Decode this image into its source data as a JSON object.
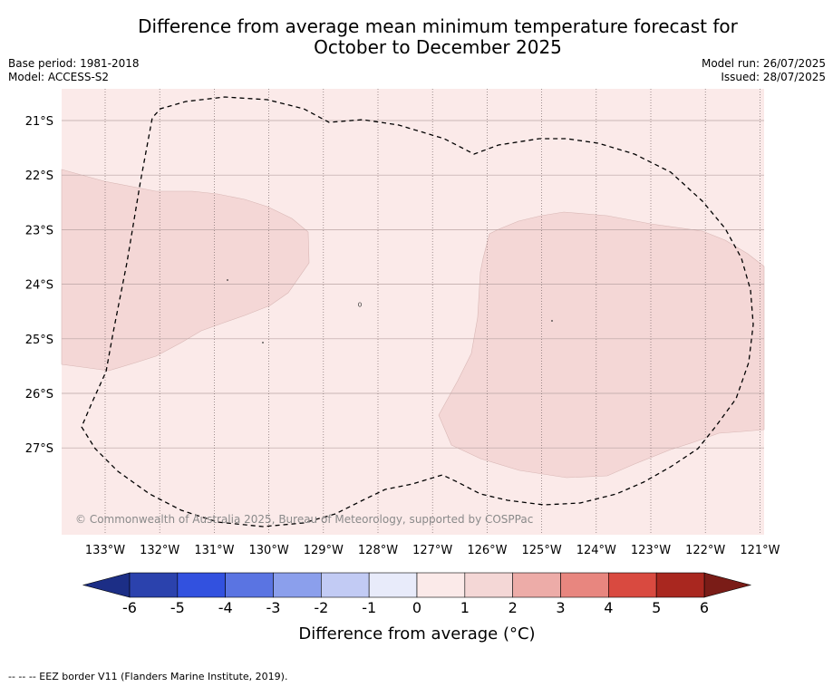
{
  "title": {
    "line1": "Difference from average mean minimum temperature forecast for",
    "line2": "October to December 2025"
  },
  "meta": {
    "base_period": "Base period: 1981-2018",
    "model": "Model: ACCESS-S2",
    "model_run": "Model run: 26/07/2025",
    "issued": "Issued: 28/07/2025"
  },
  "map": {
    "background_color": "#fbeae9",
    "lat_labels": [
      "21°S",
      "22°S",
      "23°S",
      "24°S",
      "25°S",
      "26°S",
      "27°S"
    ],
    "lon_labels": [
      "133°W",
      "132°W",
      "131°W",
      "130°W",
      "129°W",
      "128°W",
      "127°W",
      "126°W",
      "125°W",
      "124°W",
      "123°W",
      "122°W",
      "121°W"
    ],
    "anomaly_class_shown": "1 to 2",
    "anomaly_fill_color": "#f4d7d6",
    "copyright": "© Commonwealth of Australia 2025, Bureau of Meteorology, supported by COSPPac"
  },
  "colorbar": {
    "title": "Difference from average (°C)",
    "ticks": [
      "-6",
      "-5",
      "-4",
      "-3",
      "-2",
      "-1",
      "0",
      "1",
      "2",
      "3",
      "4",
      "5",
      "6"
    ],
    "colors": [
      "#2b42ad",
      "#3251df",
      "#5a74e2",
      "#8b9fec",
      "#c2cbf4",
      "#e8ebfa",
      "#fbeae9",
      "#f4d7d6",
      "#edaca8",
      "#e8867f",
      "#d94a40",
      "#a9271f"
    ],
    "under_color": "#1c2e86",
    "over_color": "#7a1c17"
  },
  "legend": {
    "eez_text": "--  --  -- EEZ border V11 (Flanders Marine Institute, 2019)."
  }
}
